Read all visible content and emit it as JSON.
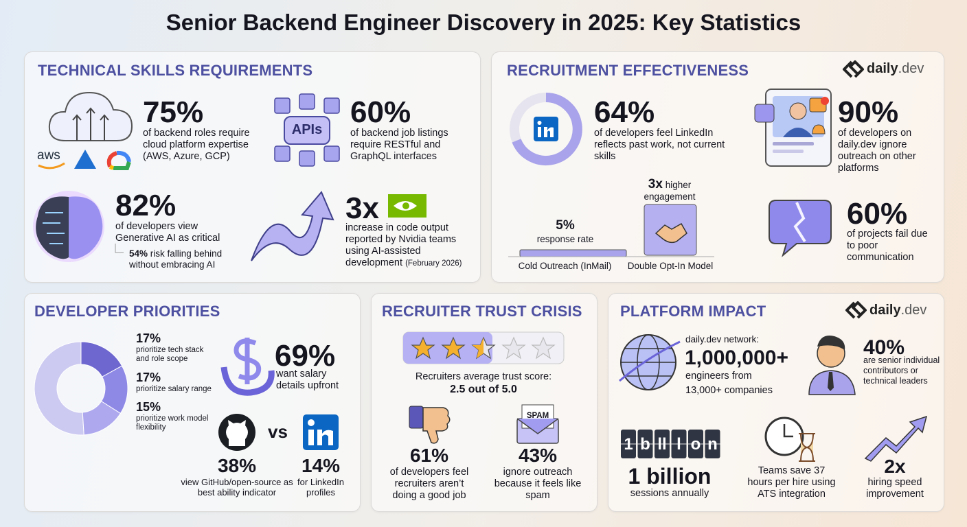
{
  "title": "Senior Backend Engineer Discovery in 2025: Key Statistics",
  "brand": {
    "name": "daily",
    "suffix": ".dev"
  },
  "technical_skills": {
    "heading": "TECHNICAL SKILLS REQUIREMENTS",
    "logo_aws": "aws",
    "cloud": {
      "value": "75%",
      "text": "of backend roles require cloud platform expertise (AWS, Azure, GCP)"
    },
    "apis": {
      "icon_label": "APIs",
      "value": "60%",
      "text": "of backend job listings require RESTful and GraphQL interfaces"
    },
    "genai": {
      "value": "82%",
      "text": "of developers view Generative AI as critical",
      "note_value": "54%",
      "note": "risk falling behind without embracing AI"
    },
    "nvidia": {
      "value": "3x",
      "text": "increase in code output reported by Nvidia teams using AI-assisted development",
      "note": "(February 2026)"
    }
  },
  "recruitment": {
    "heading": "RECRUITMENT EFFECTIVENESS",
    "linkedin": {
      "value": "64%",
      "text": "of developers feel LinkedIn reflects past work, not current skills"
    },
    "dailydev": {
      "value": "90%",
      "text": "of developers on daily.dev ignore outreach on other platforms"
    },
    "cold": {
      "value": "5%",
      "text": "response rate",
      "label": "Cold Outreach (InMail)"
    },
    "double": {
      "value": "3x",
      "text": "higher",
      "text2": "engagement",
      "label": "Double Opt-In Model"
    },
    "projects": {
      "value": "60%",
      "text": "of projects fail due to poor communication"
    }
  },
  "priorities": {
    "heading": "DEVELOPER PRIORITIES",
    "items": [
      {
        "value": 17,
        "label": "17%",
        "text": "prioritize tech stack and role scope"
      },
      {
        "value": 17,
        "label": "17%",
        "text": "prioritize salary range"
      },
      {
        "value": 15,
        "label": "15%",
        "text": "prioritize work model flexibility"
      }
    ],
    "salary": {
      "value": "69%",
      "text": "want salary details upfront"
    },
    "versus": "vs",
    "github": {
      "value": "38%",
      "text": "view GitHub/open-source as best ability indicator"
    },
    "linkedin": {
      "value": "14%",
      "text": "for LinkedIn profiles"
    }
  },
  "trust": {
    "heading": "RECRUITER TRUST CRISIS",
    "score_text": "Recruiters average trust score:",
    "score": "2.5 out of 5.0",
    "job": {
      "value": "61%",
      "text": "of developers feel recruiters aren’t doing a good job"
    },
    "spam": {
      "icon_label": "SPAM",
      "value": "43%",
      "text": "ignore outreach because it feels like spam"
    }
  },
  "platform": {
    "heading": "PLATFORM IMPACT",
    "network_label": "daily.dev network:",
    "engineers": "1,000,000+",
    "engineers_text": "engineers from",
    "companies": "13,000+ companies",
    "senior": {
      "value": "40%",
      "text": "are senior individual contributors or technical leaders"
    },
    "counter": [
      "1",
      "b",
      "ll",
      "l",
      "o",
      "n"
    ],
    "sessions": {
      "value": "1 billion",
      "text": "sessions annually"
    },
    "ats": "Teams save 37 hours per hire using ATS integration",
    "speed": {
      "value": "2x",
      "text": "hiring speed improvement"
    }
  }
}
